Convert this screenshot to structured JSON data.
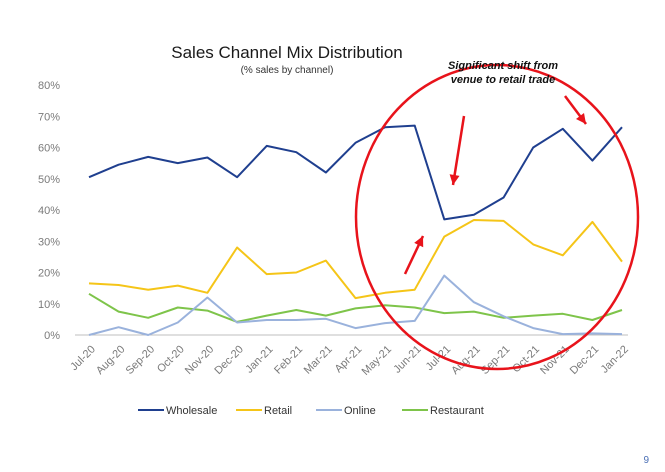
{
  "chart_data": {
    "type": "line",
    "title": "Sales Channel Mix Distribution",
    "subtitle": "(% sales by channel)",
    "categories": [
      "Jul-20",
      "Aug-20",
      "Sep-20",
      "Oct-20",
      "Nov-20",
      "Dec-20",
      "Jan-21",
      "Feb-21",
      "Mar-21",
      "Apr-21",
      "May-21",
      "Jun-21",
      "Jul-21",
      "Aug-21",
      "Sep-21",
      "Oct-21",
      "Nov-21",
      "Dec-21",
      "Jan-22"
    ],
    "y_tick_labels": [
      "0%",
      "10%",
      "20%",
      "30%",
      "40%",
      "50%",
      "60%",
      "70%",
      "80%"
    ],
    "ylim": [
      0,
      80
    ],
    "grid": false,
    "legend_position": "bottom",
    "series": [
      {
        "name": "Wholesale",
        "color": "#1f3f8f",
        "values": [
          50.5,
          54.5,
          57,
          55,
          56.8,
          50.5,
          60.5,
          58.5,
          52,
          61.5,
          66.5,
          67,
          37,
          38.5,
          44,
          60,
          66,
          55.8,
          66.5
        ]
      },
      {
        "name": "Retail",
        "color": "#f5c518",
        "values": [
          16.5,
          16,
          14.5,
          15.8,
          13.5,
          28,
          19.5,
          20,
          23.8,
          11.8,
          13.5,
          14.5,
          31.5,
          36.8,
          36.5,
          29,
          25.5,
          36.2,
          23.5
        ]
      },
      {
        "name": "Online",
        "color": "#9ab2dc",
        "values": [
          0,
          2.5,
          0,
          4,
          12,
          4,
          4.8,
          4.8,
          5.2,
          2.2,
          3.8,
          4.5,
          19,
          10.5,
          6,
          2.2,
          0.3,
          0.5,
          0.3
        ]
      },
      {
        "name": "Restaurant",
        "color": "#7ec44a",
        "values": [
          13.2,
          7.5,
          5.5,
          8.8,
          7.8,
          4.2,
          6.2,
          8,
          6.2,
          8.5,
          9.5,
          8.8,
          7,
          7.5,
          5.5,
          6.2,
          6.8,
          4.8,
          8
        ]
      }
    ],
    "annotation": {
      "lines": [
        "Significant shift from",
        "venue to retail trade"
      ],
      "circle_color": "#e8131b",
      "arrow_color": "#e8131b"
    }
  },
  "page": {
    "number": "9"
  }
}
